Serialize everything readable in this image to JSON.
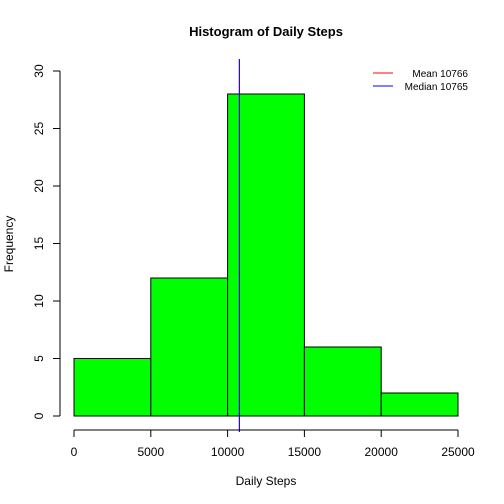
{
  "chart_data": {
    "type": "histogram",
    "title": "Histogram of Daily Steps",
    "xlabel": "Daily Steps",
    "ylabel": "Frequency",
    "bins": [
      {
        "start": 0,
        "end": 5000,
        "count": 5
      },
      {
        "start": 5000,
        "end": 10000,
        "count": 12
      },
      {
        "start": 10000,
        "end": 15000,
        "count": 28
      },
      {
        "start": 15000,
        "end": 20000,
        "count": 6
      },
      {
        "start": 20000,
        "end": 25000,
        "count": 2
      }
    ],
    "bar_color": "#00ff00",
    "xlim": [
      0,
      25000
    ],
    "ylim": [
      0,
      30
    ],
    "xticks": [
      0,
      5000,
      10000,
      15000,
      20000,
      25000
    ],
    "yticks": [
      0,
      5,
      10,
      15,
      20,
      25,
      30
    ],
    "reference_lines": [
      {
        "label": "Mean 10766",
        "value": 10766,
        "color": "#ff0000"
      },
      {
        "label": "Median 10765",
        "value": 10765,
        "color": "#0000ff"
      }
    ],
    "legend_position": "top-right"
  }
}
